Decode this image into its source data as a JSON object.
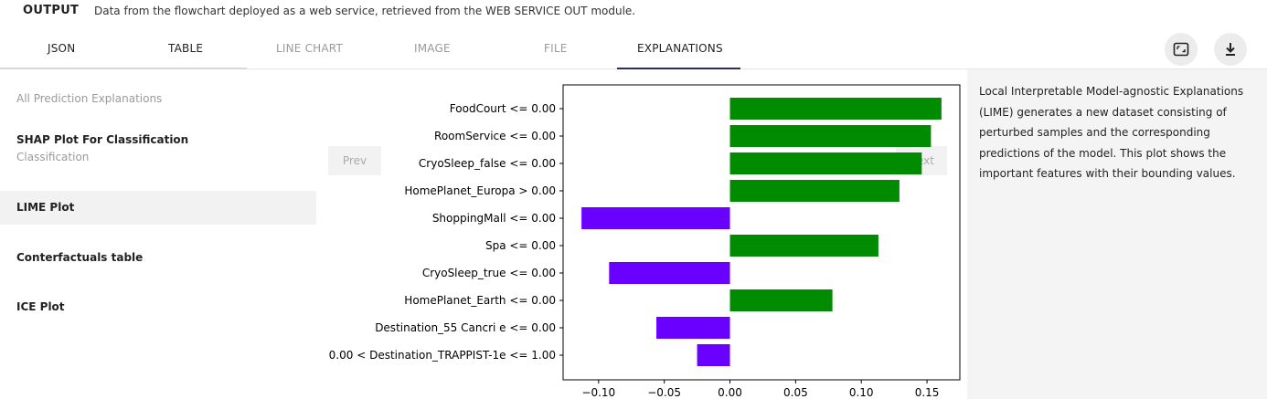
{
  "header": {
    "title": "OUTPUT",
    "subtitle": "Data from the flowchart deployed as a web service, retrieved from the WEB SERVICE OUT module."
  },
  "tabs": [
    {
      "label": "JSON",
      "state": "enabled"
    },
    {
      "label": "TABLE",
      "state": "enabled"
    },
    {
      "label": "LINE CHART",
      "state": "disabled"
    },
    {
      "label": "IMAGE",
      "state": "disabled"
    },
    {
      "label": "FILE",
      "state": "disabled"
    },
    {
      "label": "EXPLANATIONS",
      "state": "active"
    }
  ],
  "toolbar": {
    "fullscreen_icon": "fullscreen-icon",
    "download_icon": "download-icon"
  },
  "sidebar": {
    "header": "All Prediction Explanations",
    "items": [
      {
        "label": "SHAP Plot For Classification",
        "sub": "Classification"
      },
      {
        "label": "LIME Plot",
        "sub": "",
        "active": true
      },
      {
        "label": "Conterfactuals table",
        "sub": ""
      },
      {
        "label": "ICE Plot",
        "sub": ""
      }
    ]
  },
  "nav": {
    "prev_label": "Prev",
    "next_label": "Next"
  },
  "info": {
    "description": "Local Interpretable Model-agnostic Explanations (LIME) generates a new dataset consisting of perturbed samples and the corresponding predictions of the model. This plot shows the important features with their bounding values."
  },
  "chart_data": {
    "type": "bar",
    "orientation": "horizontal",
    "categories": [
      "FoodCourt <= 0.00",
      "RoomService <= 0.00",
      "CryoSleep_false <= 0.00",
      "HomePlanet_Europa > 0.00",
      "ShoppingMall <= 0.00",
      "Spa <= 0.00",
      "CryoSleep_true <= 0.00",
      "HomePlanet_Earth <= 0.00",
      "Destination_55 Cancri e <= 0.00",
      "0.00 < Destination_TRAPPIST-1e <= 1.00"
    ],
    "values": [
      0.161,
      0.153,
      0.146,
      0.129,
      -0.113,
      0.113,
      -0.092,
      0.078,
      -0.056,
      -0.025
    ],
    "xlim": [
      -0.127,
      0.175
    ],
    "xticks": [
      -0.1,
      -0.05,
      0.0,
      0.05,
      0.1,
      0.15
    ],
    "xtick_labels": [
      "−0.10",
      "−0.05",
      "0.00",
      "0.05",
      "0.10",
      "0.15"
    ],
    "positive_color": "#008b00",
    "negative_color": "#6a00ff",
    "grid": false,
    "title": "",
    "xlabel": "",
    "ylabel": ""
  }
}
